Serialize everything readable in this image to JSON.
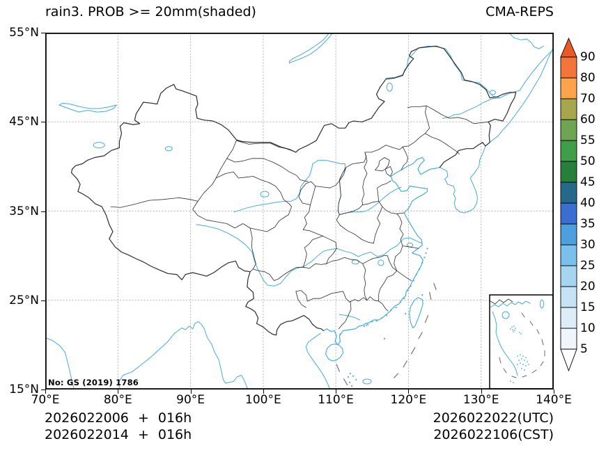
{
  "header": {
    "title": "rain3. PROB >= 20mm(shaded)",
    "model_label": "CMA-REPS"
  },
  "axes": {
    "x_ticks": [
      "70°E",
      "80°E",
      "90°E",
      "100°E",
      "110°E",
      "120°E",
      "130°E",
      "140°E"
    ],
    "y_ticks": [
      "55°N",
      "45°N",
      "35°N",
      "25°N",
      "15°N"
    ]
  },
  "map_annotations": {
    "license_no": "No: GS (2019) 1786"
  },
  "footer": {
    "left_line1": "2026022006 + 016h",
    "left_line2": "2026022014 + 016h",
    "right_line1": "2026022022(UTC)",
    "right_line2": "2026022106(CST)"
  },
  "colorbar": {
    "tick_labels": [
      "90",
      "80",
      "70",
      "60",
      "55",
      "50",
      "45",
      "40",
      "35",
      "30",
      "25",
      "20",
      "15",
      "10",
      "5"
    ],
    "segment_colors_bottom_to_top": [
      "#eef6fb",
      "#dcedf8",
      "#c5e3f5",
      "#a6d5f0",
      "#79c1ea",
      "#4d9fdd",
      "#3a6fd1",
      "#26698b",
      "#277f3b",
      "#3f9e47",
      "#6ea553",
      "#a5a64e",
      "#fba44d",
      "#f4753c"
    ],
    "over_arrow_color": "#ea5a27",
    "under_arrow_color": "#ffffff"
  },
  "colors": {
    "coastline": "#45aadf",
    "province_border": "#2b2b2b",
    "gridline": "#b8b8b8",
    "frame": "#000000",
    "dash_line": "#666666"
  }
}
